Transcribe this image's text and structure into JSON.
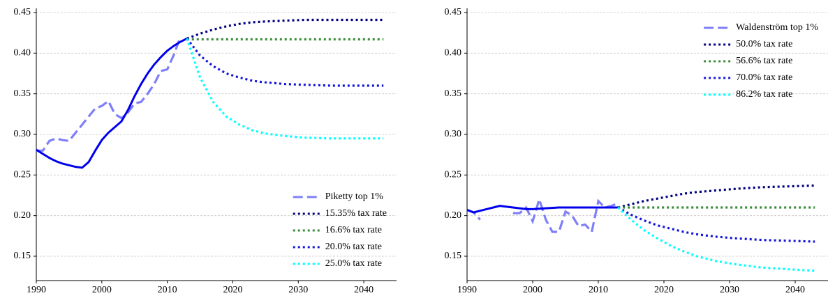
{
  "chart_data": [
    {
      "type": "line",
      "legend": "lower right",
      "grid": true,
      "xlim": [
        1990,
        2045
      ],
      "xticks": [
        1990,
        2000,
        2010,
        2020,
        2030,
        2040
      ],
      "ylim": [
        0.12,
        0.45
      ],
      "yticks": [
        0.15,
        {
          "value": 0.2,
          "label": "0.20"
        },
        0.25,
        {
          "value": 0.3,
          "label": "0.30"
        },
        0.35,
        {
          "value": 0.4,
          "label": "0.40"
        },
        0.45
      ],
      "series": [
        {
          "name": "Piketty top 1%",
          "color": "#7f7ffa",
          "style": "dashed",
          "x": [
            1990,
            1991,
            1992,
            1993,
            1994,
            1995,
            1996,
            1997,
            1998,
            1999,
            2000,
            2001,
            2002,
            2003,
            2004,
            2005,
            2006,
            2007,
            2008,
            2009,
            2010,
            2011,
            2012
          ],
          "values": [
            0.28,
            0.28,
            0.292,
            0.295,
            0.293,
            0.292,
            0.302,
            0.312,
            0.322,
            0.332,
            0.335,
            0.341,
            0.325,
            0.32,
            0.327,
            0.338,
            0.34,
            0.35,
            0.362,
            0.378,
            0.38,
            0.398,
            0.42
          ]
        },
        {
          "color": "#0000ee",
          "style": "solid",
          "x": [
            1990,
            1991,
            1992,
            1993,
            1994,
            1995,
            1996,
            1997,
            1998,
            1999,
            2000,
            2001,
            2002,
            2003,
            2004,
            2005,
            2006,
            2007,
            2008,
            2009,
            2010,
            2011,
            2012,
            2013
          ],
          "values": [
            0.281,
            0.276,
            0.271,
            0.267,
            0.264,
            0.262,
            0.26,
            0.259,
            0.266,
            0.28,
            0.293,
            0.302,
            0.309,
            0.316,
            0.33,
            0.347,
            0.362,
            0.375,
            0.386,
            0.395,
            0.403,
            0.409,
            0.414,
            0.418
          ]
        },
        {
          "name": "15.35% tax rate",
          "color": "#000080",
          "style": "dotted",
          "x": [
            2013,
            2015,
            2017,
            2019,
            2021,
            2023,
            2025,
            2028,
            2031,
            2035,
            2039,
            2043
          ],
          "values": [
            0.418,
            0.424,
            0.429,
            0.433,
            0.436,
            0.438,
            0.439,
            0.44,
            0.441,
            0.441,
            0.441,
            0.441
          ]
        },
        {
          "name": "16.6% tax rate",
          "color": "#3a8c3a",
          "style": "dotted",
          "x": [
            2013,
            2015,
            2017,
            2019,
            2021,
            2023,
            2025,
            2028,
            2031,
            2035,
            2039,
            2043
          ],
          "values": [
            0.417,
            0.417,
            0.417,
            0.417,
            0.417,
            0.417,
            0.417,
            0.417,
            0.417,
            0.417,
            0.417,
            0.417
          ]
        },
        {
          "name": "20.0% tax rate",
          "color": "#1414dc",
          "style": "dotted",
          "x": [
            2013,
            2015,
            2017,
            2019,
            2021,
            2023,
            2025,
            2028,
            2031,
            2035,
            2039,
            2043
          ],
          "values": [
            0.418,
            0.397,
            0.384,
            0.375,
            0.37,
            0.366,
            0.364,
            0.362,
            0.361,
            0.36,
            0.36,
            0.36
          ]
        },
        {
          "name": "25.0% tax rate",
          "color": "#00ffff",
          "style": "dotted",
          "x": [
            2013,
            2015,
            2017,
            2019,
            2021,
            2023,
            2025,
            2028,
            2031,
            2035,
            2039,
            2043
          ],
          "values": [
            0.418,
            0.37,
            0.34,
            0.322,
            0.312,
            0.305,
            0.301,
            0.298,
            0.296,
            0.295,
            0.295,
            0.295
          ]
        }
      ]
    },
    {
      "type": "line",
      "legend": "upper right",
      "grid": true,
      "xlim": [
        1990,
        2045
      ],
      "xticks": [
        1990,
        2000,
        2010,
        2020,
        2030,
        2040
      ],
      "ylim": [
        0.12,
        0.45
      ],
      "yticks": [
        0.15,
        {
          "value": 0.2,
          "label": "0.20"
        },
        0.25,
        {
          "value": 0.3,
          "label": "0.30"
        },
        0.35,
        {
          "value": 0.4,
          "label": "0.40"
        },
        0.45
      ],
      "series": [
        {
          "name": "Waldenström top 1%",
          "color": "#7f7ffa",
          "style": "dashed",
          "x": [
            1990,
            1991,
            1992,
            1993,
            1994,
            1995,
            1996,
            1997,
            1998,
            1999,
            2000,
            2001,
            2002,
            2003,
            2004,
            2005,
            2006,
            2007,
            2008,
            2009,
            2010,
            2011,
            2012,
            2013
          ],
          "values": [
            0.207,
            0.204,
            0.195,
            null,
            null,
            null,
            null,
            0.203,
            0.203,
            0.21,
            0.193,
            0.22,
            0.195,
            0.18,
            0.18,
            0.205,
            0.2,
            0.187,
            0.189,
            0.18,
            0.218,
            0.21,
            0.212,
            0.215
          ]
        },
        {
          "color": "#0000ee",
          "style": "solid",
          "x": [
            1990,
            1991,
            1992,
            1993,
            1994,
            1995,
            1996,
            1997,
            1998,
            1999,
            2000,
            2002,
            2004,
            2006,
            2008,
            2010,
            2013
          ],
          "values": [
            0.207,
            0.204,
            0.206,
            0.208,
            0.21,
            0.212,
            0.211,
            0.21,
            0.209,
            0.208,
            0.208,
            0.209,
            0.21,
            0.21,
            0.21,
            0.21,
            0.21
          ]
        },
        {
          "name": "50.0% tax rate",
          "color": "#000080",
          "style": "dotted",
          "x": [
            2013,
            2015,
            2017,
            2019,
            2021,
            2023,
            2025,
            2028,
            2031,
            2035,
            2039,
            2043
          ],
          "values": [
            0.21,
            0.214,
            0.218,
            0.221,
            0.224,
            0.227,
            0.229,
            0.231,
            0.233,
            0.235,
            0.236,
            0.237
          ]
        },
        {
          "name": "56.6% tax rate",
          "color": "#3a8c3a",
          "style": "dotted",
          "x": [
            2013,
            2015,
            2017,
            2019,
            2021,
            2023,
            2025,
            2028,
            2031,
            2035,
            2039,
            2043
          ],
          "values": [
            0.21,
            0.21,
            0.21,
            0.21,
            0.21,
            0.21,
            0.21,
            0.21,
            0.21,
            0.21,
            0.21,
            0.21
          ]
        },
        {
          "name": "70.0% tax rate",
          "color": "#1414dc",
          "style": "dotted",
          "x": [
            2013,
            2015,
            2017,
            2019,
            2021,
            2023,
            2025,
            2028,
            2031,
            2035,
            2039,
            2043
          ],
          "values": [
            0.21,
            0.201,
            0.194,
            0.188,
            0.184,
            0.18,
            0.177,
            0.174,
            0.172,
            0.17,
            0.169,
            0.168
          ]
        },
        {
          "name": "86.2% tax rate",
          "color": "#00ffff",
          "style": "dotted",
          "x": [
            2013,
            2015,
            2017,
            2019,
            2021,
            2023,
            2025,
            2028,
            2031,
            2035,
            2039,
            2043
          ],
          "values": [
            0.21,
            0.195,
            0.182,
            0.172,
            0.163,
            0.156,
            0.15,
            0.144,
            0.14,
            0.136,
            0.134,
            0.132
          ]
        }
      ]
    }
  ]
}
